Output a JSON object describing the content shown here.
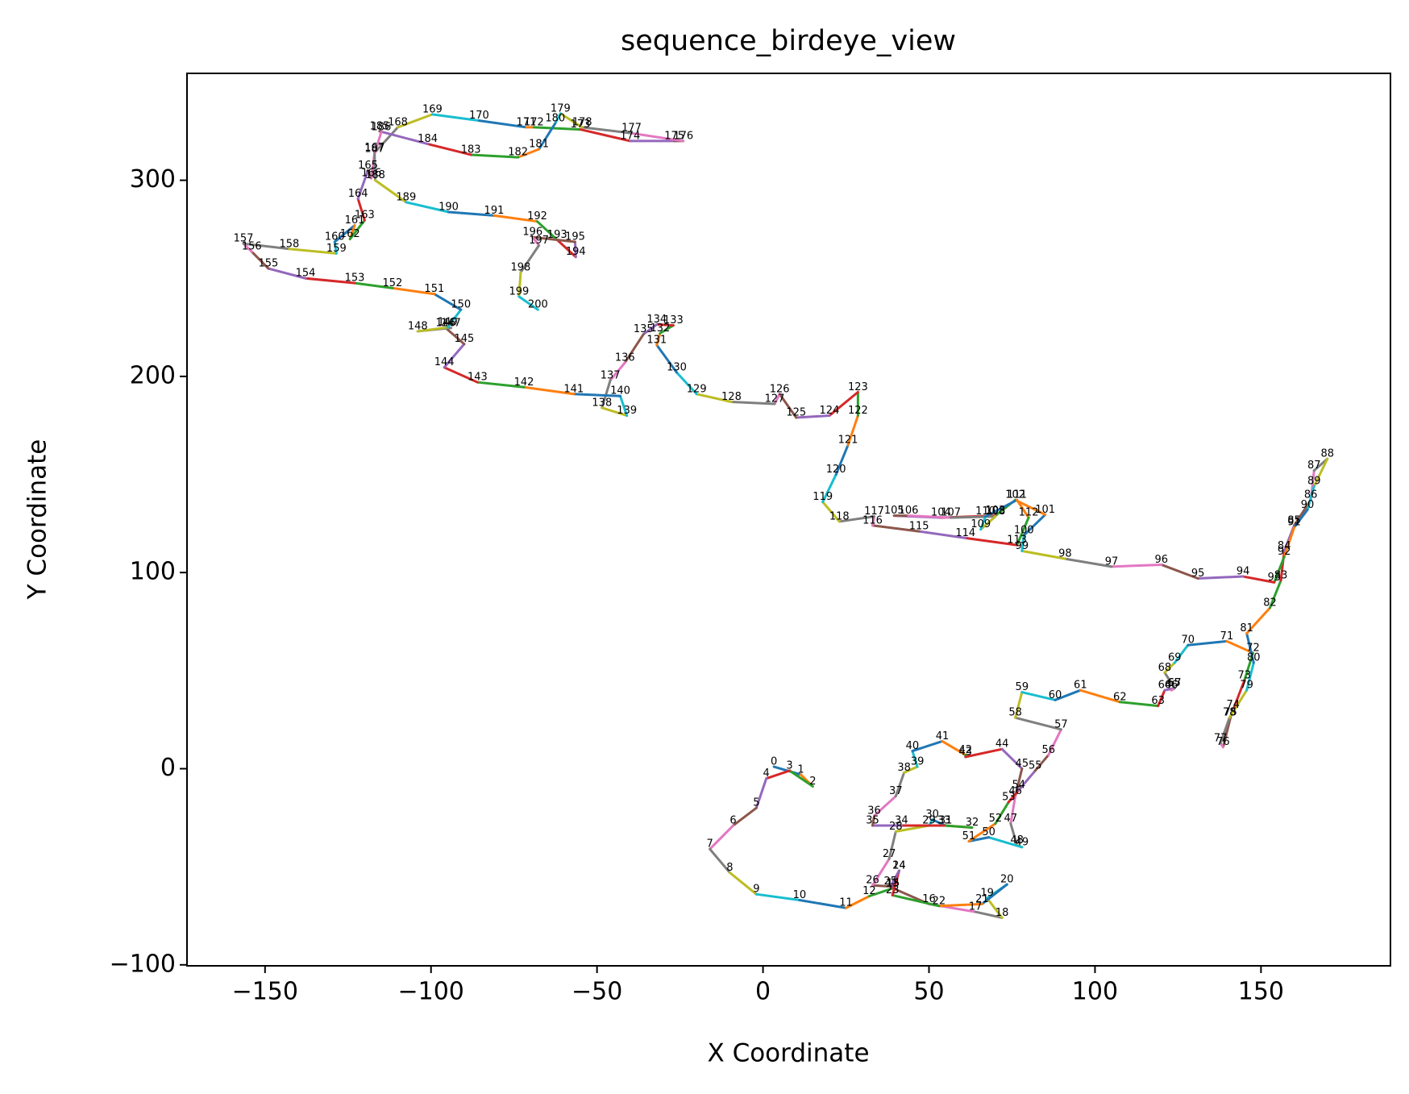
{
  "chart_data": {
    "type": "line",
    "title": "sequence_birdeye_view",
    "x_label": "X Coordinate",
    "y_label": "Y Coordinate",
    "x": [
      3.3,
      11.4,
      15,
      8,
      1,
      -2,
      -9,
      -16,
      -10,
      -2,
      11,
      25,
      32,
      39,
      41,
      39.2,
      50,
      64,
      72,
      67.5,
      73.5,
      66,
      53,
      39,
      41,
      38.4,
      33,
      38,
      40,
      50,
      51,
      55,
      63,
      54.5,
      41.7,
      33,
      33.5,
      40,
      42.5,
      46.5,
      45,
      54,
      61,
      61,
      72,
      78,
      76,
      74.6,
      76.5,
      78,
      68,
      62,
      70,
      74,
      77,
      82,
      86,
      89.8,
      76,
      78,
      88,
      95.6,
      107.5,
      119,
      121,
      123.8,
      123,
      124,
      121,
      124,
      128,
      139.7,
      147.6,
      145,
      141.6,
      140.8,
      138.6,
      137.8,
      140.5,
      145.7,
      147.8,
      145.7,
      152.7,
      156,
      157,
      160,
      165,
      166,
      170,
      166,
      164,
      160,
      157,
      154,
      144.6,
      131,
      120,
      105,
      91,
      78,
      78.6,
      85,
      76,
      70,
      53.6,
      39.5,
      43.8,
      56.6,
      70,
      65.6,
      67,
      76.5,
      80,
      76.5,
      61,
      47,
      33,
      33.5,
      23,
      18,
      22,
      25.6,
      28.6,
      28.6,
      20,
      10,
      5,
      3.5,
      -9.5,
      -20,
      -26,
      -32,
      -31,
      -27,
      -32,
      -36,
      -41.6,
      -46,
      -48.5,
      -41,
      -43,
      -57,
      -72,
      -86,
      -96,
      -90,
      -95.6,
      -94,
      -104,
      -95,
      -91,
      -99,
      -111.6,
      -123,
      -137.8,
      -149,
      -154,
      -156.5,
      -142.7,
      -128.5,
      -129,
      -123,
      -124.4,
      -120,
      -122,
      -119,
      -118,
      -117,
      -110,
      -99.6,
      -85.5,
      -71.3,
      -69,
      -55,
      -40,
      -26.7,
      -24,
      -39.6,
      -54.5,
      -61,
      -62.6,
      -67.5,
      -73.8,
      -88,
      -101,
      -115.5,
      -115,
      -117,
      -116.8,
      -107.5,
      -94.7,
      -81,
      -68,
      -62,
      -56.4,
      -56.6,
      -69.4,
      -67.5,
      -73,
      -73.5,
      -67.8
    ],
    "y": [
      1,
      -3,
      -9,
      -1,
      -5,
      -20,
      -29,
      -41,
      -53,
      -64,
      -67,
      -71,
      -65,
      -61,
      -52,
      -61,
      -69,
      -73,
      -76,
      -66,
      -59,
      -69,
      -70,
      -64.5,
      -52,
      -60,
      -59.5,
      -46,
      -32,
      -29,
      -26,
      -29,
      -30,
      -29,
      -29,
      -29,
      -24,
      -14,
      -2,
      1,
      9,
      14,
      7,
      6,
      10,
      0,
      -14,
      -28,
      -39,
      -40,
      -35,
      -37,
      -28,
      -17,
      -11,
      -1,
      7,
      20,
      26,
      39,
      35,
      40,
      34,
      32,
      40,
      41,
      40,
      41,
      49,
      54,
      63,
      65,
      59,
      45,
      30,
      26,
      11,
      13,
      26,
      40,
      54,
      69,
      82,
      96,
      111,
      124,
      137,
      152,
      158,
      144,
      132,
      123,
      108,
      95,
      98,
      97,
      104,
      103,
      107,
      111,
      119,
      129.5,
      137,
      129,
      128,
      129,
      129,
      128,
      128.6,
      122,
      128.6,
      137,
      128,
      114,
      117.6,
      121,
      124,
      128.6,
      126,
      136,
      150,
      165,
      180,
      192,
      180,
      179,
      191,
      186,
      187,
      191,
      202,
      216,
      222,
      226,
      226.5,
      221.5,
      207,
      198,
      184,
      180,
      190,
      191,
      194.5,
      197,
      204.6,
      216.5,
      224.7,
      224.7,
      223,
      225,
      234,
      242,
      245,
      247.6,
      250,
      255,
      263.6,
      267.7,
      265,
      262.7,
      268.6,
      277,
      270,
      279.6,
      290.6,
      305,
      301,
      314,
      327,
      333.6,
      330.4,
      327,
      327,
      325.9,
      320,
      320,
      320,
      324,
      327,
      334,
      329,
      315.8,
      311.7,
      313,
      318.5,
      325,
      324.5,
      313.5,
      300,
      288.8,
      283.8,
      282,
      279,
      269.6,
      260.9,
      268.6,
      271,
      266.8,
      253,
      240.7,
      234
    ],
    "point_labels": [
      0,
      1,
      2,
      3,
      4,
      5,
      6,
      7,
      8,
      9,
      10,
      11,
      12,
      13,
      14,
      15,
      16,
      17,
      18,
      19,
      20,
      21,
      22,
      23,
      24,
      25,
      26,
      27,
      28,
      29,
      30,
      31,
      32,
      33,
      34,
      35,
      36,
      37,
      38,
      39,
      40,
      41,
      42,
      43,
      44,
      45,
      46,
      47,
      48,
      49,
      50,
      51,
      52,
      53,
      54,
      55,
      56,
      57,
      58,
      59,
      60,
      61,
      62,
      63,
      64,
      65,
      66,
      67,
      68,
      69,
      70,
      71,
      72,
      73,
      74,
      75,
      76,
      77,
      78,
      79,
      80,
      81,
      82,
      83,
      84,
      85,
      86,
      87,
      88,
      89,
      90,
      91,
      92,
      93,
      94,
      95,
      96,
      97,
      98,
      99,
      100,
      101,
      102,
      103,
      104,
      105,
      106,
      107,
      108,
      109,
      110,
      111,
      112,
      113,
      114,
      115,
      116,
      117,
      118,
      119,
      120,
      121,
      122,
      123,
      124,
      125,
      126,
      127,
      128,
      129,
      130,
      131,
      132,
      133,
      134,
      135,
      136,
      137,
      138,
      139,
      140,
      141,
      142,
      143,
      144,
      145,
      146,
      147,
      148,
      149,
      150,
      151,
      152,
      153,
      154,
      155,
      156,
      157,
      158,
      159,
      160,
      161,
      162,
      163,
      164,
      165,
      166,
      167,
      168,
      169,
      170,
      171,
      172,
      173,
      174,
      175,
      176,
      177,
      178,
      179,
      180,
      181,
      182,
      183,
      184,
      185,
      186,
      187,
      188,
      189,
      190,
      191,
      192,
      193,
      194,
      195,
      196,
      197,
      198,
      199,
      200
    ],
    "colors": [
      "#1f77b4",
      "#ff7f0e",
      "#2ca02c",
      "#d62728",
      "#9467bd",
      "#8c564b",
      "#e377c2",
      "#7f7f7f",
      "#bcbd22",
      "#17becf"
    ],
    "xlim": [
      -173.5,
      189
    ],
    "ylim": [
      -100.5,
      354.5
    ],
    "xticks": [
      {
        "value": -150,
        "label": "−150"
      },
      {
        "value": -100,
        "label": "−100"
      },
      {
        "value": -50,
        "label": "−50"
      },
      0,
      50,
      100,
      150
    ],
    "yticks": [
      {
        "value": -100,
        "label": "−100"
      },
      0,
      100,
      200,
      300
    ]
  }
}
